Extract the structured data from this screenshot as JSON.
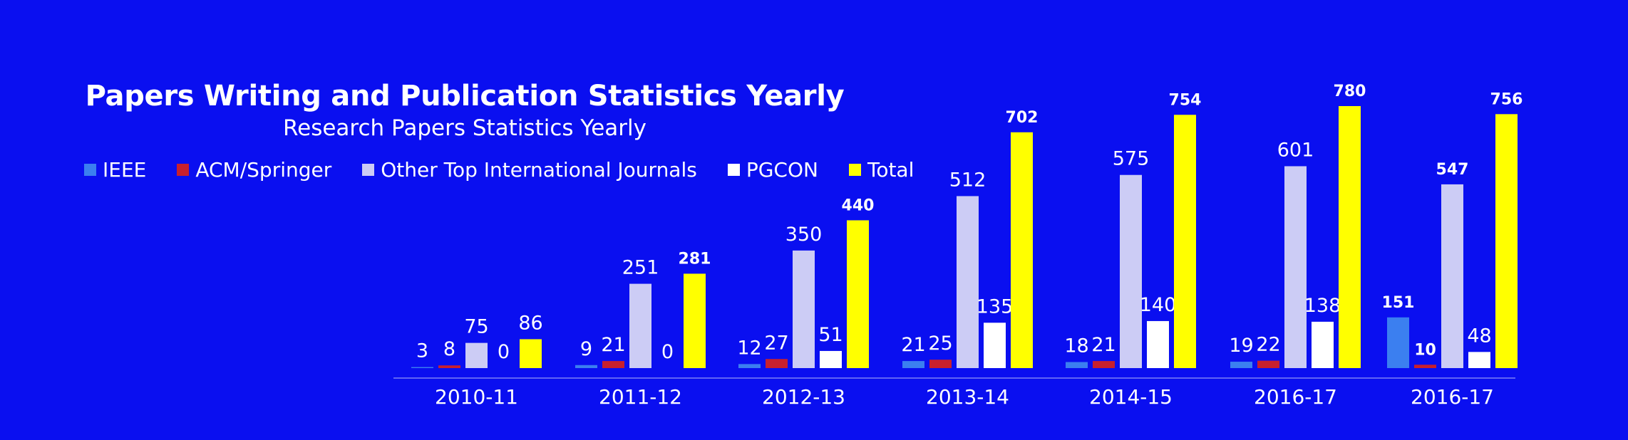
{
  "chart_data": {
    "type": "bar",
    "title": "Papers Writing and Publication Statistics Yearly",
    "subtitle": "Research Papers Statistics Yearly",
    "categories": [
      "2010-11",
      "2011-12",
      "2012-13",
      "2013-14",
      "2014-15",
      "2016-17",
      "2016-17"
    ],
    "series": [
      {
        "name": "IEEE",
        "color": "#3b7ff0",
        "values": [
          3,
          9,
          12,
          21,
          18,
          19,
          151
        ]
      },
      {
        "name": "ACM/Springer",
        "color": "#c8202e",
        "values": [
          8,
          21,
          27,
          25,
          21,
          22,
          10
        ]
      },
      {
        "name": "Other Top International Journals",
        "color": "#ccccf5",
        "values": [
          75,
          251,
          350,
          512,
          575,
          601,
          547
        ]
      },
      {
        "name": "PGCON",
        "color": "#ffffff",
        "values": [
          0,
          0,
          51,
          135,
          140,
          138,
          48
        ]
      },
      {
        "name": "Total",
        "color": "#ffff00",
        "values": [
          86,
          281,
          440,
          702,
          754,
          780,
          756
        ]
      }
    ],
    "bold_labels": {
      "Total": [
        false,
        true,
        true,
        true,
        true,
        true,
        true
      ],
      "IEEE": [
        false,
        false,
        false,
        false,
        false,
        false,
        true
      ],
      "ACM/Springer": [
        false,
        false,
        false,
        false,
        false,
        false,
        true
      ],
      "Other Top International Journals": [
        false,
        false,
        false,
        false,
        false,
        false,
        true
      ]
    },
    "legend_position": "top-left",
    "grid": false,
    "ylim": [
      0,
      800
    ]
  }
}
